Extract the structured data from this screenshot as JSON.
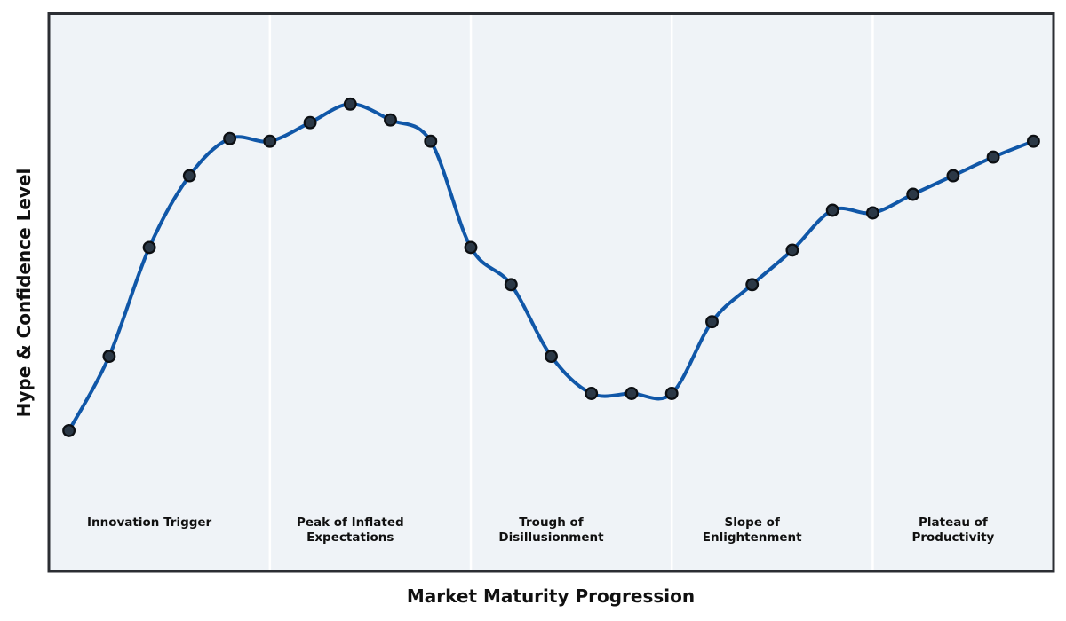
{
  "chart_data": {
    "type": "line",
    "title": "",
    "xlabel": "Market Maturity Progression",
    "ylabel": "Hype & Confidence Level",
    "x": [
      0,
      1,
      2,
      3,
      4,
      5,
      6,
      7,
      8,
      9,
      10,
      11,
      12,
      13,
      14,
      15,
      16,
      17,
      18,
      19,
      20,
      21,
      22,
      23,
      24
    ],
    "series": [
      {
        "name": "Hype & Confidence",
        "values": [
          26.5,
          40.5,
          61,
          74.5,
          81.5,
          81,
          84.5,
          88,
          85,
          81,
          61,
          54,
          40.5,
          33.5,
          33.5,
          33.5,
          47,
          54,
          60.5,
          68,
          67.5,
          71,
          74.5,
          78,
          81
        ]
      }
    ],
    "xlim": [
      -0.5,
      24.5
    ],
    "ylim": [
      0,
      105
    ],
    "grid": false,
    "legend": false,
    "axis_ticks": "none",
    "phase_dividers_x": [
      5,
      10,
      15,
      20
    ],
    "phases": [
      {
        "lines": [
          "Innovation Trigger"
        ],
        "center_x": 2
      },
      {
        "lines": [
          "Peak of Inflated",
          "Expectations"
        ],
        "center_x": 7
      },
      {
        "lines": [
          "Trough of",
          "Disillusionment"
        ],
        "center_x": 12
      },
      {
        "lines": [
          "Slope of",
          "Enlightenment"
        ],
        "center_x": 17
      },
      {
        "lines": [
          "Plateau of",
          "Productivity"
        ],
        "center_x": 22
      }
    ],
    "colors": {
      "page_bg": "#ffffff",
      "plot_bg": "#eff3f7",
      "divider": "#ffffff",
      "frame": "#2b2e33",
      "line": "#1057a8",
      "marker_fill": "#2b3846",
      "marker_edge": "#0c0f13",
      "text": "#101010"
    }
  }
}
